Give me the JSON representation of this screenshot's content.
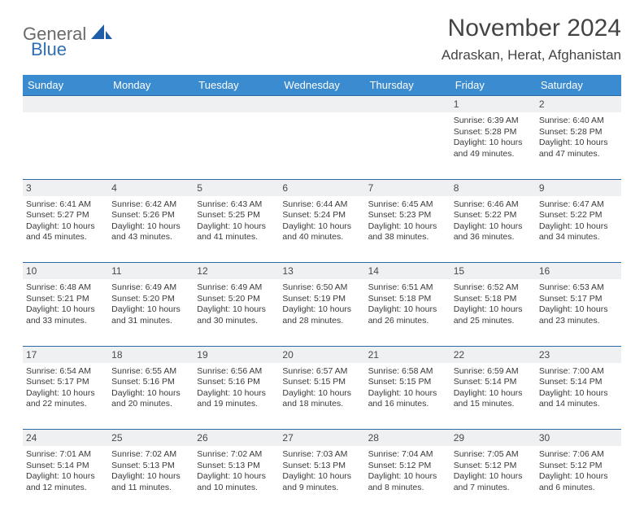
{
  "brand": {
    "text1": "General",
    "text2": "Blue"
  },
  "title": "November 2024",
  "location": "Adraskan, Herat, Afghanistan",
  "colors": {
    "header_bg": "#3a8bcf",
    "header_fg": "#ffffff",
    "daynum_bg": "#eef0f2",
    "rule": "#2d6ba8",
    "text": "#3a3a3a",
    "brand_gray": "#6a6a6a",
    "brand_blue": "#2f6fb3",
    "page_bg": "#ffffff"
  },
  "columns": [
    "Sunday",
    "Monday",
    "Tuesday",
    "Wednesday",
    "Thursday",
    "Friday",
    "Saturday"
  ],
  "weeks": [
    [
      null,
      null,
      null,
      null,
      null,
      {
        "n": "1",
        "sr": "Sunrise: 6:39 AM",
        "ss": "Sunset: 5:28 PM",
        "dl": "Daylight: 10 hours and 49 minutes."
      },
      {
        "n": "2",
        "sr": "Sunrise: 6:40 AM",
        "ss": "Sunset: 5:28 PM",
        "dl": "Daylight: 10 hours and 47 minutes."
      }
    ],
    [
      {
        "n": "3",
        "sr": "Sunrise: 6:41 AM",
        "ss": "Sunset: 5:27 PM",
        "dl": "Daylight: 10 hours and 45 minutes."
      },
      {
        "n": "4",
        "sr": "Sunrise: 6:42 AM",
        "ss": "Sunset: 5:26 PM",
        "dl": "Daylight: 10 hours and 43 minutes."
      },
      {
        "n": "5",
        "sr": "Sunrise: 6:43 AM",
        "ss": "Sunset: 5:25 PM",
        "dl": "Daylight: 10 hours and 41 minutes."
      },
      {
        "n": "6",
        "sr": "Sunrise: 6:44 AM",
        "ss": "Sunset: 5:24 PM",
        "dl": "Daylight: 10 hours and 40 minutes."
      },
      {
        "n": "7",
        "sr": "Sunrise: 6:45 AM",
        "ss": "Sunset: 5:23 PM",
        "dl": "Daylight: 10 hours and 38 minutes."
      },
      {
        "n": "8",
        "sr": "Sunrise: 6:46 AM",
        "ss": "Sunset: 5:22 PM",
        "dl": "Daylight: 10 hours and 36 minutes."
      },
      {
        "n": "9",
        "sr": "Sunrise: 6:47 AM",
        "ss": "Sunset: 5:22 PM",
        "dl": "Daylight: 10 hours and 34 minutes."
      }
    ],
    [
      {
        "n": "10",
        "sr": "Sunrise: 6:48 AM",
        "ss": "Sunset: 5:21 PM",
        "dl": "Daylight: 10 hours and 33 minutes."
      },
      {
        "n": "11",
        "sr": "Sunrise: 6:49 AM",
        "ss": "Sunset: 5:20 PM",
        "dl": "Daylight: 10 hours and 31 minutes."
      },
      {
        "n": "12",
        "sr": "Sunrise: 6:49 AM",
        "ss": "Sunset: 5:20 PM",
        "dl": "Daylight: 10 hours and 30 minutes."
      },
      {
        "n": "13",
        "sr": "Sunrise: 6:50 AM",
        "ss": "Sunset: 5:19 PM",
        "dl": "Daylight: 10 hours and 28 minutes."
      },
      {
        "n": "14",
        "sr": "Sunrise: 6:51 AM",
        "ss": "Sunset: 5:18 PM",
        "dl": "Daylight: 10 hours and 26 minutes."
      },
      {
        "n": "15",
        "sr": "Sunrise: 6:52 AM",
        "ss": "Sunset: 5:18 PM",
        "dl": "Daylight: 10 hours and 25 minutes."
      },
      {
        "n": "16",
        "sr": "Sunrise: 6:53 AM",
        "ss": "Sunset: 5:17 PM",
        "dl": "Daylight: 10 hours and 23 minutes."
      }
    ],
    [
      {
        "n": "17",
        "sr": "Sunrise: 6:54 AM",
        "ss": "Sunset: 5:17 PM",
        "dl": "Daylight: 10 hours and 22 minutes."
      },
      {
        "n": "18",
        "sr": "Sunrise: 6:55 AM",
        "ss": "Sunset: 5:16 PM",
        "dl": "Daylight: 10 hours and 20 minutes."
      },
      {
        "n": "19",
        "sr": "Sunrise: 6:56 AM",
        "ss": "Sunset: 5:16 PM",
        "dl": "Daylight: 10 hours and 19 minutes."
      },
      {
        "n": "20",
        "sr": "Sunrise: 6:57 AM",
        "ss": "Sunset: 5:15 PM",
        "dl": "Daylight: 10 hours and 18 minutes."
      },
      {
        "n": "21",
        "sr": "Sunrise: 6:58 AM",
        "ss": "Sunset: 5:15 PM",
        "dl": "Daylight: 10 hours and 16 minutes."
      },
      {
        "n": "22",
        "sr": "Sunrise: 6:59 AM",
        "ss": "Sunset: 5:14 PM",
        "dl": "Daylight: 10 hours and 15 minutes."
      },
      {
        "n": "23",
        "sr": "Sunrise: 7:00 AM",
        "ss": "Sunset: 5:14 PM",
        "dl": "Daylight: 10 hours and 14 minutes."
      }
    ],
    [
      {
        "n": "24",
        "sr": "Sunrise: 7:01 AM",
        "ss": "Sunset: 5:14 PM",
        "dl": "Daylight: 10 hours and 12 minutes."
      },
      {
        "n": "25",
        "sr": "Sunrise: 7:02 AM",
        "ss": "Sunset: 5:13 PM",
        "dl": "Daylight: 10 hours and 11 minutes."
      },
      {
        "n": "26",
        "sr": "Sunrise: 7:02 AM",
        "ss": "Sunset: 5:13 PM",
        "dl": "Daylight: 10 hours and 10 minutes."
      },
      {
        "n": "27",
        "sr": "Sunrise: 7:03 AM",
        "ss": "Sunset: 5:13 PM",
        "dl": "Daylight: 10 hours and 9 minutes."
      },
      {
        "n": "28",
        "sr": "Sunrise: 7:04 AM",
        "ss": "Sunset: 5:12 PM",
        "dl": "Daylight: 10 hours and 8 minutes."
      },
      {
        "n": "29",
        "sr": "Sunrise: 7:05 AM",
        "ss": "Sunset: 5:12 PM",
        "dl": "Daylight: 10 hours and 7 minutes."
      },
      {
        "n": "30",
        "sr": "Sunrise: 7:06 AM",
        "ss": "Sunset: 5:12 PM",
        "dl": "Daylight: 10 hours and 6 minutes."
      }
    ]
  ]
}
